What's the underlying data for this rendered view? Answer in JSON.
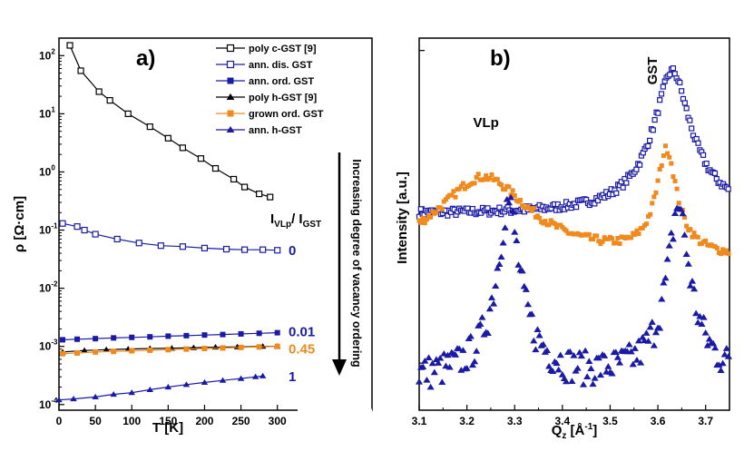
{
  "chart_data": [
    {
      "type": "line",
      "panel_label": "a)",
      "xlabel": "T [K]",
      "ylabel": "ρ [Ω·cm]",
      "xlim": [
        0,
        430
      ],
      "ylim": [
        8e-05,
        200
      ],
      "y_scale": "log",
      "x_ticks": [
        "0",
        "50",
        "100",
        "150",
        "200",
        "250",
        "300"
      ],
      "x_tick_values": [
        0,
        50,
        100,
        150,
        200,
        250,
        300
      ],
      "y_ticks": [
        {
          "value": 0.0001,
          "base": "10",
          "exp": "-4"
        },
        {
          "value": 0.001,
          "base": "10",
          "exp": "-3"
        },
        {
          "value": 0.01,
          "base": "10",
          "exp": "-2"
        },
        {
          "value": 0.1,
          "base": "10",
          "exp": "-1"
        },
        {
          "value": 1,
          "base": "10",
          "exp": "0"
        },
        {
          "value": 10,
          "base": "10",
          "exp": "1"
        },
        {
          "value": 100,
          "base": "10",
          "exp": "2"
        }
      ],
      "legend_placement": "top-right",
      "series": [
        {
          "name": "poly c-GST [9]",
          "color": "#000000",
          "marker": "square-open",
          "points": [
            [
              15,
              150
            ],
            [
              30,
              55
            ],
            [
              55,
              24
            ],
            [
              70,
              17
            ],
            [
              95,
              10
            ],
            [
              125,
              6
            ],
            [
              150,
              3.8
            ],
            [
              170,
              2.6
            ],
            [
              195,
              1.7
            ],
            [
              215,
              1.15
            ],
            [
              240,
              0.75
            ],
            [
              255,
              0.55
            ],
            [
              275,
              0.42
            ],
            [
              290,
              0.37
            ]
          ]
        },
        {
          "name": "ann. dis. GST",
          "color": "#1a1aa6",
          "marker": "square-open",
          "points": [
            [
              5,
              0.13
            ],
            [
              25,
              0.115
            ],
            [
              35,
              0.1
            ],
            [
              50,
              0.085
            ],
            [
              80,
              0.07
            ],
            [
              110,
              0.06
            ],
            [
              140,
              0.054
            ],
            [
              170,
              0.052
            ],
            [
              200,
              0.049
            ],
            [
              230,
              0.047
            ],
            [
              255,
              0.046
            ],
            [
              280,
              0.046
            ],
            [
              300,
              0.045
            ]
          ]
        },
        {
          "name": "ann. ord. GST",
          "color": "#1a1aa6",
          "marker": "square-filled",
          "points": [
            [
              5,
              0.0013
            ],
            [
              25,
              0.00133
            ],
            [
              50,
              0.00136
            ],
            [
              75,
              0.0014
            ],
            [
              100,
              0.00143
            ],
            [
              125,
              0.00146
            ],
            [
              150,
              0.0015
            ],
            [
              175,
              0.00153
            ],
            [
              200,
              0.00157
            ],
            [
              225,
              0.0016
            ],
            [
              250,
              0.00164
            ],
            [
              275,
              0.00168
            ],
            [
              300,
              0.00172
            ]
          ]
        },
        {
          "name": "poly h-GST [9]",
          "color": "#000000",
          "marker": "triangle-filled",
          "points": [
            [
              5,
              0.0008
            ],
            [
              35,
              0.00085
            ],
            [
              65,
              0.00088
            ],
            [
              95,
              0.0009
            ],
            [
              125,
              0.00092
            ],
            [
              155,
              0.00093
            ],
            [
              185,
              0.00095
            ],
            [
              215,
              0.00097
            ],
            [
              245,
              0.00098
            ],
            [
              280,
              0.001
            ],
            [
              300,
              0.001
            ]
          ]
        },
        {
          "name": "grown ord. GST",
          "color": "#f08a1e",
          "marker": "square-filled",
          "points": [
            [
              5,
              0.00075
            ],
            [
              25,
              0.00077
            ],
            [
              50,
              0.0008
            ],
            [
              75,
              0.00082
            ],
            [
              100,
              0.00084
            ],
            [
              125,
              0.00086
            ],
            [
              150,
              0.00088
            ],
            [
              175,
              0.0009
            ],
            [
              200,
              0.00092
            ],
            [
              225,
              0.00094
            ],
            [
              250,
              0.00096
            ],
            [
              275,
              0.00098
            ],
            [
              300,
              0.001
            ]
          ]
        },
        {
          "name": "ann. h-GST",
          "color": "#1a1aa6",
          "marker": "triangle-filled",
          "points": [
            [
              0,
              0.00012
            ],
            [
              20,
              0.000125
            ],
            [
              50,
              0.000135
            ],
            [
              75,
              0.00015
            ],
            [
              100,
              0.00016
            ],
            [
              125,
              0.00018
            ],
            [
              150,
              0.0002
            ],
            [
              175,
              0.00022
            ],
            [
              200,
              0.00024
            ],
            [
              225,
              0.00026
            ],
            [
              250,
              0.00028
            ],
            [
              270,
              0.0003
            ],
            [
              280,
              0.00031
            ]
          ]
        }
      ],
      "ratio_header": {
        "base": "I",
        "sub1": "VLp",
        "sep": "/ I",
        "sub2": "GST"
      },
      "ratio_labels": [
        {
          "text": "0",
          "y": 0.045,
          "color": "#1a1aa6"
        },
        {
          "text": "0.01",
          "y": 0.0018,
          "color": "#1a1aa6"
        },
        {
          "text": "0.45",
          "y": 0.0009,
          "color": "#f08a1e"
        },
        {
          "text": "1",
          "y": 0.0003,
          "color": "#1a1aa6"
        }
      ],
      "arrow_label": "Increasing degree of vacancy ordering"
    },
    {
      "type": "scatter",
      "panel_label": "b)",
      "xlabel_base": "Q",
      "xlabel_sub": "z",
      "xlabel_unit": " [Å",
      "xlabel_sup": "-1",
      "xlabel_end": "]",
      "ylabel": "Intensity [a.u.]",
      "xlim": [
        3.1,
        3.75
      ],
      "y_scale": "log",
      "x_ticks": [
        "3.1",
        "3.2",
        "3.3",
        "3.4",
        "3.5",
        "3.6",
        "3.7"
      ],
      "x_tick_values": [
        3.1,
        3.2,
        3.3,
        3.4,
        3.5,
        3.6,
        3.7
      ],
      "annotations": [
        {
          "text": "VLp",
          "x": 3.24
        },
        {
          "text": "GST",
          "x": 3.6
        }
      ],
      "series": [
        {
          "name": "",
          "color": "#1a1aa6",
          "marker": "square-open",
          "baseline": 0.9,
          "peaks": [
            {
              "center": 3.63,
              "height": 6.5,
              "width": 0.03
            }
          ]
        },
        {
          "name": "",
          "color": "#f08a1e",
          "marker": "square-filled",
          "baseline": 0.45,
          "peaks": [
            {
              "center": 3.235,
              "height": 1.1,
              "width": 0.09
            },
            {
              "center": 3.618,
              "height": 1.85,
              "width": 0.018
            }
          ]
        },
        {
          "name": "",
          "color": "#1a1aa6",
          "marker": "triangle-filled",
          "baseline": 0.08,
          "peaks": [
            {
              "center": 3.287,
              "height": 1.0,
              "width": 0.016
            },
            {
              "center": 3.643,
              "height": 0.95,
              "width": 0.016
            }
          ]
        }
      ]
    }
  ]
}
